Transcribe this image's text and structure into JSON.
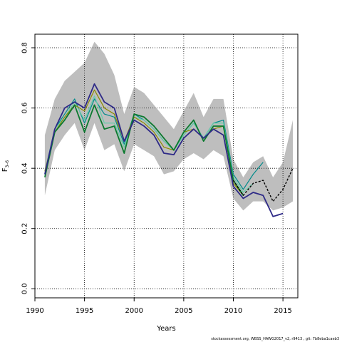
{
  "chart_data": {
    "type": "line",
    "xlabel": "Years",
    "ylabel_main": "F",
    "ylabel_sub": "3–6",
    "xlim": [
      1990,
      2016.5
    ],
    "ylim": [
      -0.03,
      0.845
    ],
    "xticks": [
      1990,
      1995,
      2000,
      2005,
      2010,
      2015
    ],
    "yticks": [
      0.0,
      0.2,
      0.4,
      0.6,
      0.8
    ],
    "xtick_labels": [
      "1990",
      "1995",
      "2000",
      "2005",
      "2010",
      "2015"
    ],
    "ytick_labels": [
      "0.0",
      "0.2",
      "0.4",
      "0.6",
      "0.8"
    ],
    "grid": true,
    "band": {
      "years": [
        1991,
        1992,
        1993,
        1994,
        1995,
        1996,
        1997,
        1998,
        1999,
        2000,
        2001,
        2002,
        2003,
        2004,
        2005,
        2006,
        2007,
        2008,
        2009,
        2010,
        2011,
        2012,
        2013,
        2014,
        2015,
        2016
      ],
      "upper": [
        0.51,
        0.63,
        0.69,
        0.72,
        0.75,
        0.82,
        0.78,
        0.71,
        0.58,
        0.67,
        0.65,
        0.61,
        0.57,
        0.53,
        0.59,
        0.65,
        0.57,
        0.63,
        0.63,
        0.43,
        0.37,
        0.42,
        0.44,
        0.37,
        0.42,
        0.56
      ],
      "lower": [
        0.31,
        0.46,
        0.51,
        0.55,
        0.46,
        0.55,
        0.46,
        0.48,
        0.39,
        0.48,
        0.46,
        0.44,
        0.38,
        0.39,
        0.43,
        0.45,
        0.43,
        0.46,
        0.44,
        0.3,
        0.26,
        0.29,
        0.29,
        0.26,
        0.27,
        0.29
      ],
      "color": "#bebebe"
    },
    "series": [
      {
        "color": "#008B8B",
        "width": 1.2,
        "years": [
          1991,
          1992,
          1993,
          1994,
          1995,
          1996,
          1997,
          1998,
          1999,
          2000,
          2001,
          2002,
          2003,
          2004,
          2005,
          2006,
          2007,
          2008,
          2009,
          2010,
          2011,
          2012,
          2013
        ],
        "values": [
          0.38,
          0.53,
          0.58,
          0.63,
          0.55,
          0.63,
          0.58,
          0.57,
          0.48,
          0.58,
          0.56,
          0.53,
          0.49,
          0.46,
          0.51,
          0.55,
          0.5,
          0.55,
          0.56,
          0.38,
          0.33,
          0.38,
          0.42
        ]
      },
      {
        "color": "#66CDAA",
        "width": 1.2,
        "years": [
          1991,
          1992,
          1993,
          1994,
          1995,
          1996,
          1997,
          1998,
          1999,
          2000,
          2001,
          2002,
          2003,
          2004,
          2005,
          2006,
          2007,
          2008,
          2009,
          2010,
          2011,
          2012
        ],
        "values": [
          0.39,
          0.53,
          0.57,
          0.62,
          0.56,
          0.64,
          0.55,
          0.55,
          0.47,
          0.57,
          0.56,
          0.53,
          0.49,
          0.46,
          0.51,
          0.55,
          0.5,
          0.55,
          0.55,
          0.37,
          0.32,
          0.35
        ]
      },
      {
        "color": "#8B8B00",
        "width": 1.2,
        "years": [
          1991,
          1992,
          1993,
          1994,
          1995,
          1996,
          1997,
          1998,
          1999,
          2000,
          2001,
          2002,
          2003,
          2004,
          2005,
          2006,
          2007,
          2008,
          2009,
          2010,
          2011
        ],
        "values": [
          0.39,
          0.52,
          0.57,
          0.61,
          0.59,
          0.66,
          0.6,
          0.58,
          0.49,
          0.57,
          0.55,
          0.52,
          0.47,
          0.46,
          0.52,
          0.53,
          0.5,
          0.53,
          0.54,
          0.35,
          0.31
        ]
      },
      {
        "color": "#0B7A2F",
        "width": 1.8,
        "years": [
          1991,
          1992,
          1993,
          1994,
          1995,
          1996,
          1997,
          1998,
          1999,
          2000,
          2001,
          2002,
          2003,
          2004,
          2005,
          2006,
          2007,
          2008,
          2009,
          2010,
          2011
        ],
        "values": [
          0.37,
          0.52,
          0.56,
          0.61,
          0.52,
          0.61,
          0.53,
          0.54,
          0.45,
          0.58,
          0.57,
          0.54,
          0.5,
          0.46,
          0.52,
          0.56,
          0.49,
          0.54,
          0.54,
          0.36,
          0.31
        ]
      },
      {
        "color": "#2E2A87",
        "width": 1.8,
        "years": [
          1991,
          1992,
          1993,
          1994,
          1995,
          1996,
          1997,
          1998,
          1999,
          2000,
          2001,
          2002,
          2003,
          2004,
          2005,
          2006,
          2007,
          2008,
          2009,
          2010,
          2011,
          2012,
          2013,
          2014,
          2015
        ],
        "values": [
          0.38,
          0.53,
          0.6,
          0.62,
          0.6,
          0.68,
          0.62,
          0.6,
          0.49,
          0.56,
          0.54,
          0.51,
          0.45,
          0.445,
          0.5,
          0.53,
          0.5,
          0.53,
          0.51,
          0.34,
          0.3,
          0.32,
          0.31,
          0.24,
          0.25
        ]
      },
      {
        "color": "#000000",
        "width": 1.4,
        "dash": "3,2",
        "years": [
          2010,
          2011,
          2012,
          2013,
          2014,
          2015,
          2016
        ],
        "values": [
          0.36,
          0.31,
          0.35,
          0.36,
          0.29,
          0.33,
          0.4
        ]
      }
    ]
  },
  "footer": "stockassessment.org,  WBSS_HAWG2017_v2,  r9413 ,  git: 7b8eba1caeb3"
}
